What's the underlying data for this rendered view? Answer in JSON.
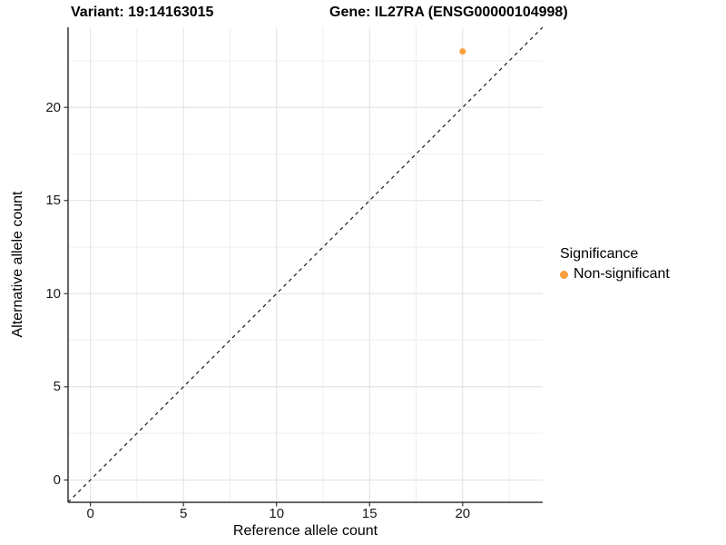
{
  "header": {
    "title_left": "Variant: 19:14163015",
    "title_right": "Gene: IL27RA (ENSG00000104998)"
  },
  "chart_data": {
    "type": "scatter",
    "title": "",
    "xlabel": "Reference allele count",
    "ylabel": "Alternative allele count",
    "xlim": [
      -1.2,
      24.3
    ],
    "ylim": [
      -1.2,
      24.3
    ],
    "x_major_ticks": [
      0,
      5,
      10,
      15,
      20
    ],
    "y_major_ticks": [
      0,
      5,
      10,
      15,
      20
    ],
    "x_minor_ticks": [
      2.5,
      7.5,
      12.5,
      17.5,
      22.5
    ],
    "y_minor_ticks": [
      2.5,
      7.5,
      12.5,
      17.5,
      22.5
    ],
    "grid": "major+minor",
    "points": [
      {
        "x": 20,
        "y": 23,
        "series": "Non-significant"
      }
    ],
    "reference_line": {
      "type": "identity",
      "style": "dashed"
    },
    "series": [
      {
        "name": "Non-significant",
        "color": "#F9A03C"
      }
    ],
    "legend": {
      "title": "Significance",
      "position": "right"
    }
  },
  "colors": {
    "background": "#FFFFFF",
    "grid_major": "#E2E2E2",
    "grid_minor": "#EDEDED",
    "axis_line": "#333333",
    "tick_text": "#1A1A1A",
    "reference_line": "#1A1A1A"
  }
}
